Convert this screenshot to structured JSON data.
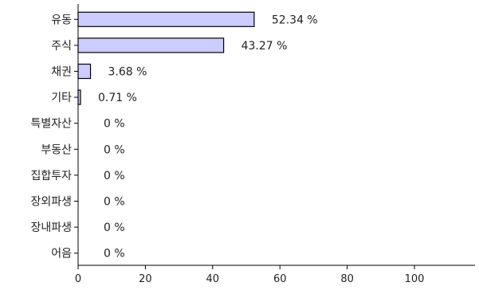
{
  "chart_data": {
    "type": "bar",
    "orientation": "horizontal",
    "categories": [
      "유동",
      "주식",
      "채권",
      "기타",
      "특별자산",
      "부동산",
      "집합투자",
      "장외파생",
      "장내파생",
      "어음"
    ],
    "values": [
      52.34,
      43.27,
      3.68,
      0.71,
      0,
      0,
      0,
      0,
      0,
      0
    ],
    "value_labels": [
      "52.34 %",
      "43.27 %",
      "3.68 %",
      "0.71 %",
      "0 %",
      "0 %",
      "0 %",
      "0 %",
      "0 %",
      "0 %"
    ],
    "title": "",
    "xlabel": "",
    "ylabel": "",
    "xlim": [
      0,
      118
    ],
    "x_ticks": [
      0,
      20,
      40,
      60,
      80,
      100
    ],
    "x_tick_labels": [
      "0",
      "20",
      "40",
      "60",
      "80",
      "100"
    ],
    "grid": false,
    "legend": "none",
    "bar_color": "#ccccff",
    "bar_edge_color": "#000000"
  }
}
